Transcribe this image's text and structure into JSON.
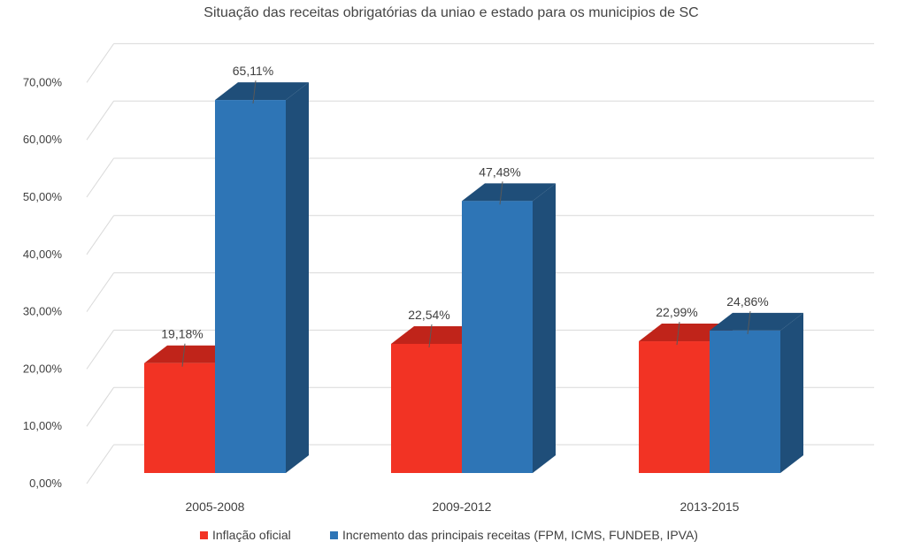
{
  "chart_data": {
    "type": "bar",
    "title": "Situação das receitas obrigatórias da uniao e estado para os municipios de SC",
    "categories": [
      "2005-2008",
      "2009-2012",
      "2013-2015"
    ],
    "series": [
      {
        "name": "Inflação oficial",
        "values": [
          19.18,
          22.54,
          22.99
        ],
        "labels": [
          "19,18%",
          "22,54%",
          "22,99%"
        ],
        "color": "#f23324",
        "top_color": "#c0241a"
      },
      {
        "name": "Incremento das principais receitas (FPM, ICMS, FUNDEB, IPVA)",
        "values": [
          65.11,
          47.48,
          24.86
        ],
        "labels": [
          "65,11%",
          "47,48%",
          "24,86%"
        ],
        "color": "#2e75b6",
        "top_color": "#1f4e79"
      }
    ],
    "ylim": [
      0,
      70
    ],
    "yticks": [
      0,
      10,
      20,
      30,
      40,
      50,
      60,
      70
    ],
    "ytick_labels": [
      "0,00%",
      "10,00%",
      "20,00%",
      "30,00%",
      "40,00%",
      "50,00%",
      "60,00%",
      "70,00%"
    ],
    "xlabel": "",
    "ylabel": "",
    "grid": true,
    "legend": "bottom",
    "three_d": true
  }
}
